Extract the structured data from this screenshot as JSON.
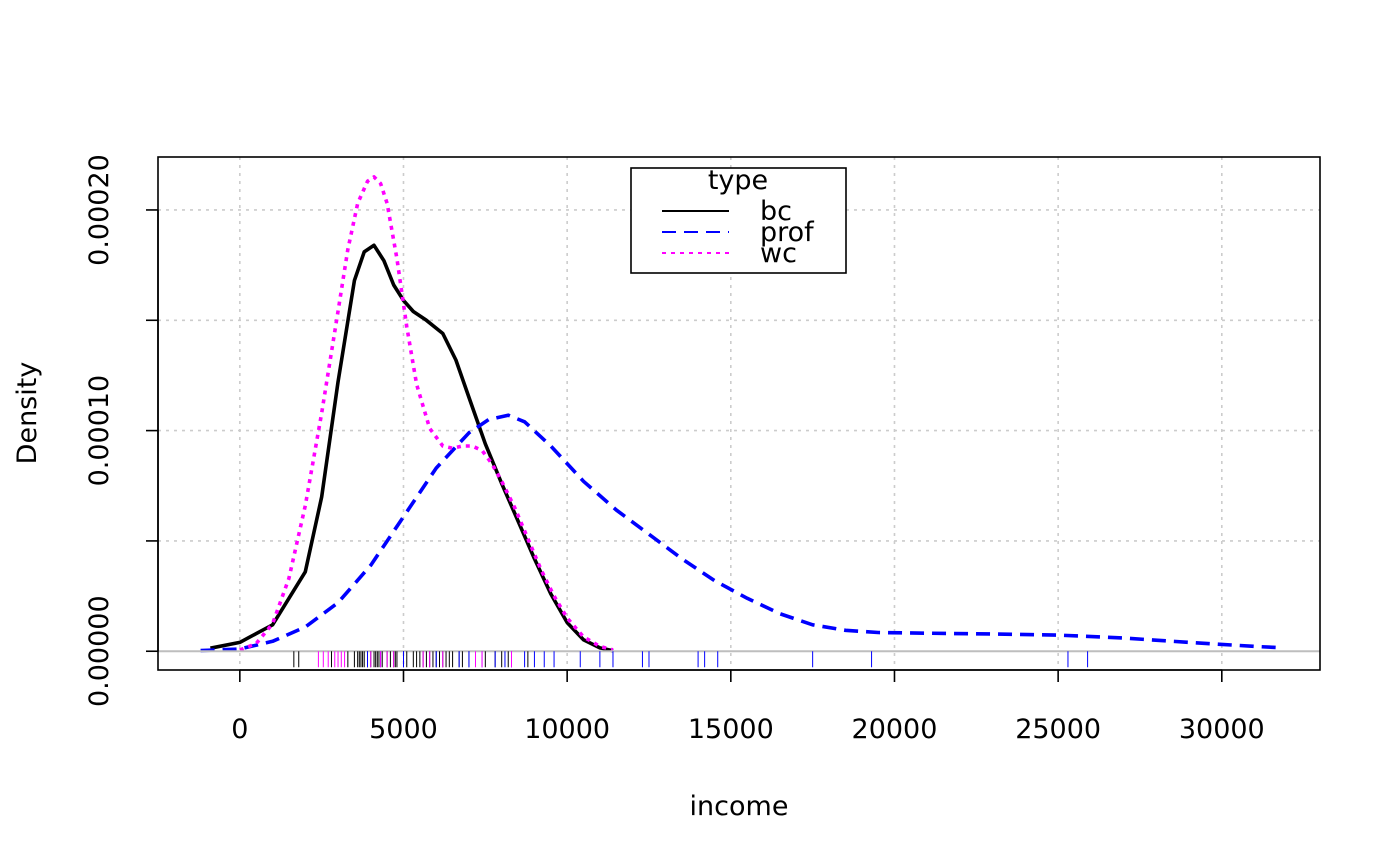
{
  "chart_data": {
    "type": "line",
    "title": "",
    "xlabel": "income",
    "ylabel": "Density",
    "xlim": [
      -2500,
      33000
    ],
    "ylim": [
      -8.5e-06,
      0.000224
    ],
    "x_ticks": [
      0,
      5000,
      10000,
      15000,
      20000,
      25000,
      30000
    ],
    "x_tick_labels": [
      "0",
      "5000",
      "10000",
      "15000",
      "20000",
      "25000",
      "30000"
    ],
    "y_ticks": [
      0,
      5e-05,
      0.0001,
      0.00015,
      0.0002
    ],
    "y_tick_labels": [
      "0.00000",
      "",
      "0.00010",
      "",
      "0.00020"
    ],
    "grid": true,
    "legend": {
      "title": "type",
      "position": "top-center"
    },
    "series": [
      {
        "name": "bc",
        "color": "#000000",
        "dash": "solid",
        "x": [
          -900,
          0,
          1000,
          2000,
          2500,
          3000,
          3500,
          3800,
          4100,
          4400,
          4700,
          5000,
          5300,
          5700,
          6200,
          6600,
          7000,
          7500,
          8000,
          8500,
          9000,
          9500,
          10000,
          10500,
          11000,
          11400
        ],
        "y": [
          1.4e-06,
          4e-06,
          1.2e-05,
          3.6e-05,
          7e-05,
          0.000122,
          0.000168,
          0.000181,
          0.000184,
          0.000177,
          0.000166,
          0.000159,
          0.000154,
          0.00015,
          0.000144,
          0.000132,
          0.000115,
          9.4e-05,
          7.6e-05,
          5.9e-05,
          4.2e-05,
          2.6e-05,
          1.3e-05,
          5.2e-06,
          1.5e-06,
          2e-07
        ],
        "rug": [
          1650,
          1800,
          2800,
          3300,
          3500,
          3600,
          3650,
          3700,
          3750,
          3800,
          3900,
          4000,
          4100,
          4150,
          4200,
          4250,
          4350,
          4500,
          4600,
          4700,
          4750,
          4800,
          5000,
          5100,
          5300,
          5400,
          5500,
          5600,
          5700,
          5800,
          5900,
          6000,
          6100,
          6200,
          6300,
          6400,
          6500,
          6700,
          6800,
          7000,
          7500,
          7800,
          8000,
          8200,
          8800
        ]
      },
      {
        "name": "prof",
        "color": "#0000FF",
        "dash": "dashed",
        "x": [
          -1200,
          0,
          1000,
          2000,
          3000,
          4000,
          5000,
          6000,
          7000,
          7600,
          8200,
          8700,
          9500,
          10500,
          11500,
          12500,
          13500,
          14500,
          15500,
          16500,
          17500,
          18500,
          19500,
          21000,
          23000,
          25000,
          27000,
          29000,
          31000,
          31800
        ],
        "y": [
          3e-07,
          1e-06,
          4.5e-06,
          1.1e-05,
          2.2e-05,
          3.9e-05,
          6.1e-05,
          8.3e-05,
          9.9e-05,
          0.000105,
          0.000107,
          0.000104,
          9.3e-05,
          7.7e-05,
          6.4e-05,
          5.3e-05,
          4.2e-05,
          3.2e-05,
          2.4e-05,
          1.7e-05,
          1.2e-05,
          9.5e-06,
          8.5e-06,
          8.2e-06,
          7.8e-06,
          7.3e-06,
          6e-06,
          4e-06,
          2.2e-06,
          1.6e-06
        ],
        "rug": [
          3900,
          4300,
          5000,
          6000,
          6700,
          7000,
          7400,
          7800,
          8100,
          8300,
          8700,
          9000,
          9300,
          9600,
          10400,
          11000,
          11400,
          12300,
          12500,
          14000,
          14200,
          14600,
          17500,
          19300,
          25300,
          25900
        ]
      },
      {
        "name": "wc",
        "color": "#FF00FF",
        "dash": "dotted",
        "x": [
          0,
          500,
          1000,
          1500,
          2000,
          2500,
          3000,
          3300,
          3600,
          3900,
          4100,
          4300,
          4500,
          4800,
          5100,
          5400,
          5800,
          6200,
          6500,
          6800,
          7100,
          7400,
          7700,
          8000,
          8400,
          8800,
          9200,
          9600,
          10000,
          10500,
          11000,
          11400
        ],
        "y": [
          5e-07,
          3.5e-06,
          1.25e-05,
          3.3e-05,
          6.6e-05,
          0.000108,
          0.000154,
          0.000182,
          0.000203,
          0.000213,
          0.000215,
          0.000212,
          0.000203,
          0.000178,
          0.000147,
          0.000121,
          0.000101,
          9.3e-05,
          9.2e-05,
          9.3e-05,
          9.3e-05,
          9.1e-05,
          8.5e-05,
          7.7e-05,
          6.5e-05,
          5.1e-05,
          3.7e-05,
          2.5e-05,
          1.5e-05,
          6.5e-06,
          2.2e-06,
          6e-07
        ],
        "rug": [
          2400,
          2550,
          2700,
          2900,
          3000,
          3100,
          3200,
          4000,
          4300,
          4500,
          4700,
          5600,
          5800,
          6200,
          7200,
          7400,
          8300
        ]
      }
    ]
  }
}
